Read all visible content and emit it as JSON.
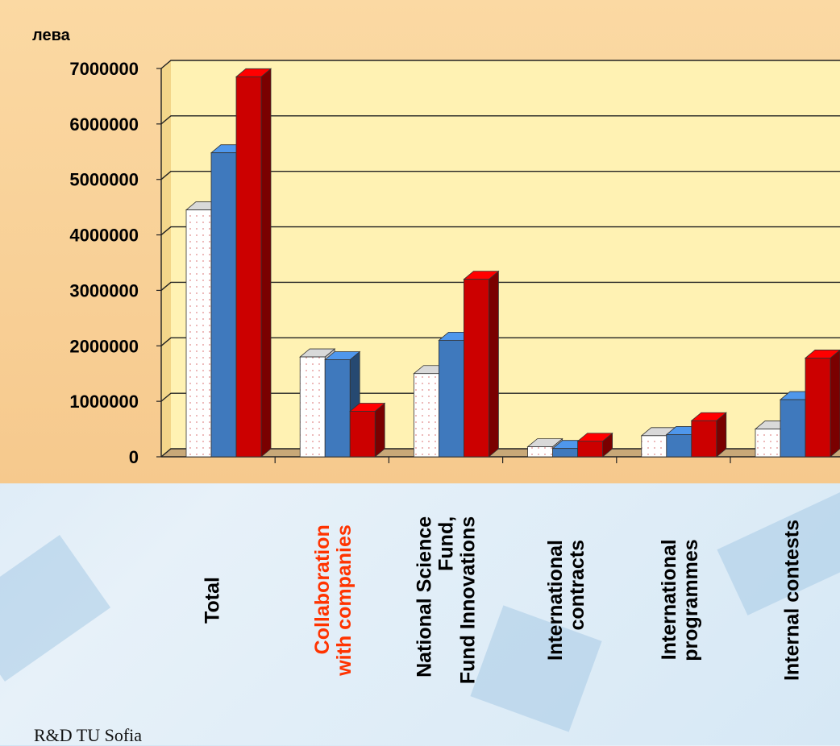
{
  "chart_data": {
    "type": "bar",
    "ylabel": "лева",
    "ylim": [
      0,
      7000000
    ],
    "yticks": [
      "0",
      "1000000",
      "2000000",
      "3000000",
      "4000000",
      "5000000",
      "6000000",
      "7000000"
    ],
    "categories": [
      "Total",
      "Collaboration\nwith companies",
      "National Science\nFund,\nFund Innovations",
      "International\ncontracts",
      "International\nprogrammes",
      "Internal contests"
    ],
    "highlight_category": 1,
    "series": [
      {
        "values": [
          4450000,
          1800000,
          1500000,
          180000,
          380000,
          500000
        ],
        "color": "#ffffff"
      },
      {
        "values": [
          5480000,
          1750000,
          2100000,
          150000,
          400000,
          1030000
        ],
        "color": "#3f79bd"
      },
      {
        "values": [
          6850000,
          820000,
          3200000,
          280000,
          650000,
          1780000
        ],
        "color": "#cc0000"
      }
    ],
    "grid": true
  },
  "footer": {
    "text": "R&D TU Sofia"
  },
  "colors": {
    "panel": "#f6c98d",
    "plot": "#fff0b0",
    "highlight_label": "#ff3300"
  }
}
